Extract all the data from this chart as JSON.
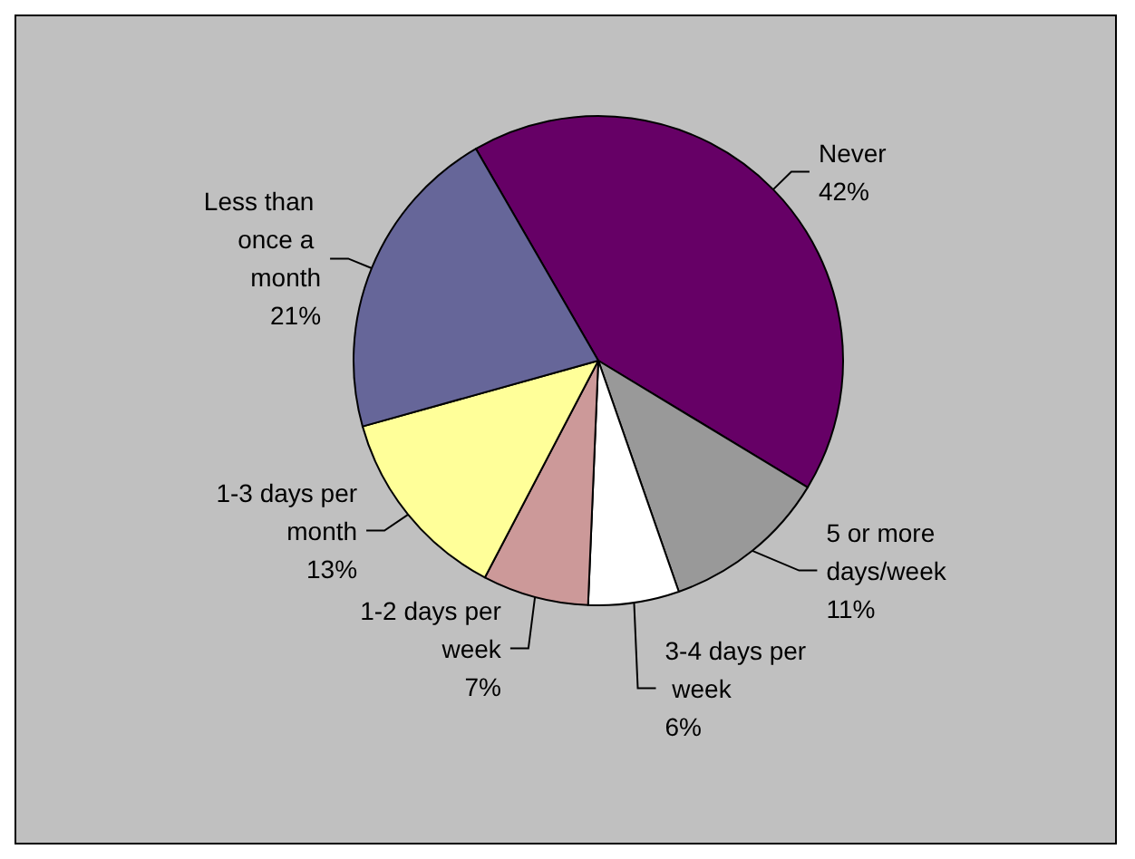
{
  "chart_data": {
    "type": "pie",
    "categories": [
      "Never",
      "5 or more days/week",
      "3-4 days per week",
      "1-2 days per week",
      "1-3 days per month",
      "Less than once a month"
    ],
    "values": [
      42,
      11,
      6,
      7,
      13,
      21
    ],
    "value_labels": [
      "42%",
      "11%",
      "6%",
      "7%",
      "13%",
      "21%"
    ],
    "colors": [
      "#660066",
      "#999999",
      "#ffffff",
      "#cc9999",
      "#ffff99",
      "#666699"
    ],
    "legend": false
  }
}
